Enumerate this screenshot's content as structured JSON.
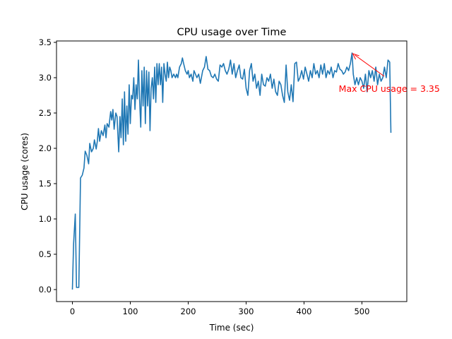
{
  "chart_data": {
    "type": "line",
    "title": "CPU usage over Time",
    "xlabel": "Time (sec)",
    "ylabel": "CPU usage (cores)",
    "xlim": [
      -27.5,
      577.5
    ],
    "ylim": [
      -0.17,
      3.52
    ],
    "xticks": [
      0,
      100,
      200,
      300,
      400,
      500
    ],
    "xtick_labels": [
      "0",
      "100",
      "200",
      "300",
      "400",
      "500"
    ],
    "yticks": [
      0.0,
      0.5,
      1.0,
      1.5,
      2.0,
      2.5,
      3.0,
      3.5
    ],
    "ytick_labels": [
      "0.0",
      "0.5",
      "1.0",
      "1.5",
      "2.0",
      "2.5",
      "3.0",
      "3.5"
    ],
    "grid": false,
    "series": [
      {
        "name": "CPU usage",
        "color": "#1f77b4",
        "x": [
          0,
          2,
          5,
          7,
          11,
          14,
          17,
          20,
          22,
          25,
          28,
          30,
          33,
          36,
          38,
          41,
          43,
          45,
          47,
          50,
          53,
          56,
          58,
          60,
          63,
          66,
          68,
          70,
          72,
          75,
          77,
          80,
          82,
          84,
          86,
          88,
          90,
          92,
          94,
          96,
          98,
          100,
          102,
          104,
          106,
          108,
          110,
          112,
          114,
          116,
          118,
          120,
          122,
          124,
          126,
          128,
          130,
          132,
          134,
          136,
          138,
          140,
          142,
          144,
          146,
          148,
          150,
          152,
          154,
          156,
          158,
          160,
          162,
          164,
          166,
          168,
          170,
          172,
          175,
          178,
          180,
          182,
          185,
          188,
          190,
          192,
          195,
          198,
          200,
          202,
          205,
          208,
          210,
          215,
          218,
          221,
          225,
          228,
          231,
          234,
          237,
          240,
          243,
          246,
          249,
          252,
          255,
          258,
          261,
          264,
          267,
          270,
          273,
          276,
          279,
          282,
          285,
          288,
          291,
          294,
          297,
          300,
          303,
          306,
          309,
          312,
          315,
          318,
          321,
          324,
          327,
          330,
          333,
          336,
          339,
          342,
          345,
          348,
          351,
          354,
          357,
          360,
          363,
          366,
          369,
          372,
          375,
          378,
          381,
          384,
          387,
          390,
          393,
          396,
          399,
          402,
          405,
          408,
          411,
          414,
          417,
          420,
          423,
          426,
          429,
          432,
          435,
          438,
          441,
          444,
          447,
          450,
          453,
          456,
          459,
          462,
          465,
          468,
          471,
          474,
          477,
          480,
          483,
          485,
          488,
          491,
          494,
          497,
          500,
          503,
          506,
          509,
          512,
          515,
          518,
          521,
          524,
          527,
          530,
          533,
          536,
          539,
          542,
          545,
          548,
          550
        ],
        "y": [
          0.0,
          0.65,
          1.07,
          0.03,
          0.03,
          1.58,
          1.62,
          1.72,
          1.96,
          1.9,
          1.78,
          2.07,
          1.95,
          2.0,
          2.12,
          1.99,
          2.1,
          2.28,
          2.1,
          2.25,
          2.18,
          2.33,
          2.15,
          2.35,
          2.3,
          2.52,
          2.4,
          2.55,
          2.27,
          2.5,
          2.45,
          1.95,
          2.45,
          2.15,
          2.7,
          2.05,
          2.8,
          2.1,
          2.6,
          2.2,
          2.9,
          2.35,
          2.75,
          2.7,
          3.0,
          2.55,
          2.9,
          2.7,
          3.25,
          2.7,
          2.3,
          3.1,
          2.6,
          3.15,
          2.35,
          3.1,
          2.6,
          3.08,
          2.25,
          2.85,
          3.0,
          2.7,
          3.15,
          2.65,
          3.2,
          2.9,
          3.2,
          2.9,
          3.15,
          2.65,
          3.2,
          3.05,
          2.95,
          3.22,
          3.0,
          3.15,
          3.1,
          3.0,
          3.05,
          3.0,
          3.05,
          3.0,
          3.15,
          3.2,
          3.28,
          3.2,
          3.1,
          3.05,
          3.1,
          3.0,
          3.05,
          2.95,
          3.1,
          3.0,
          3.05,
          2.92,
          3.1,
          3.15,
          3.3,
          3.12,
          3.1,
          3.02,
          3.0,
          3.05,
          2.98,
          2.95,
          3.18,
          3.15,
          3.2,
          3.1,
          3.05,
          3.12,
          3.25,
          3.05,
          3.2,
          3.0,
          3.1,
          3.18,
          3.0,
          2.98,
          3.12,
          2.85,
          2.75,
          3.1,
          3.2,
          2.95,
          3.05,
          2.85,
          2.95,
          2.75,
          3.05,
          2.9,
          2.88,
          3.0,
          2.95,
          3.05,
          2.85,
          2.98,
          2.8,
          2.75,
          2.95,
          2.9,
          2.75,
          2.65,
          3.18,
          2.8,
          2.68,
          2.9,
          2.66,
          3.2,
          3.22,
          2.95,
          3.0,
          3.1,
          2.98,
          3.15,
          3.05,
          2.95,
          3.1,
          3.0,
          3.2,
          3.05,
          3.1,
          3.0,
          3.18,
          3.05,
          3.2,
          3.0,
          3.1,
          3.05,
          3.15,
          3.0,
          3.1,
          3.08,
          3.2,
          3.12,
          3.1,
          3.05,
          3.08,
          3.15,
          3.1,
          3.2,
          3.35,
          3.05,
          2.9,
          3.0,
          2.9,
          3.0,
          2.95,
          2.85,
          3.05,
          2.8,
          3.1,
          3.0,
          3.1,
          2.95,
          3.15,
          2.9,
          3.05,
          2.95,
          3.0,
          3.15,
          3.0,
          3.25,
          3.22,
          2.22
        ]
      }
    ],
    "annotation": {
      "text": "Max CPU usage = 3.35",
      "color": "#ff0000",
      "point": [
        483,
        3.35
      ],
      "text_anchor": [
        460,
        2.85
      ]
    }
  }
}
